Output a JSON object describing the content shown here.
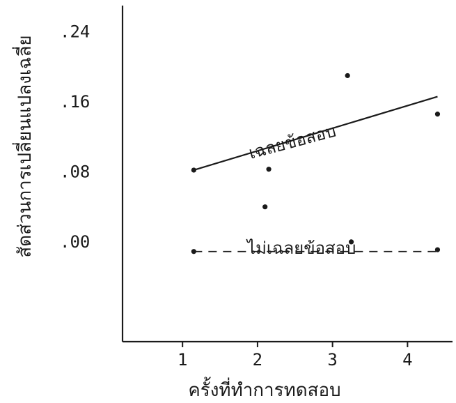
{
  "chart_data": {
    "type": "scatter",
    "title": "",
    "xlabel": "ครั้งที่ทำการทดสอบ",
    "ylabel": "สัดส่วนการเปลี่ยนแปลงเฉลี่ย",
    "xlim": [
      0.2,
      4.6
    ],
    "ylim": [
      -0.114,
      0.27
    ],
    "x_ticks": [
      1,
      2,
      3,
      4
    ],
    "x_tick_labels": [
      "1",
      "2",
      "3",
      "4"
    ],
    "y_ticks": [
      0.0,
      0.08,
      0.16,
      0.24
    ],
    "y_tick_labels": [
      ".00",
      ".08",
      ".16",
      ".24"
    ],
    "grid": false,
    "series": [
      {
        "name": "เฉลยข้อสอบ",
        "style": "solid",
        "points": [
          {
            "x": 1.15,
            "y": 0.082
          },
          {
            "x": 2.15,
            "y": 0.083
          },
          {
            "x": 3.2,
            "y": 0.19
          },
          {
            "x": 4.4,
            "y": 0.146
          }
        ],
        "trend": [
          {
            "x": 1.15,
            "y": 0.082
          },
          {
            "x": 4.4,
            "y": 0.166
          }
        ]
      },
      {
        "name": "ไม่เฉลยข้อสอบ",
        "style": "dashed",
        "points": [
          {
            "x": 1.15,
            "y": -0.011
          },
          {
            "x": 2.1,
            "y": 0.04
          },
          {
            "x": 3.25,
            "y": 0.0
          },
          {
            "x": 4.4,
            "y": -0.009
          }
        ],
        "trend": [
          {
            "x": 1.15,
            "y": -0.011
          },
          {
            "x": 4.4,
            "y": -0.011
          }
        ]
      }
    ]
  }
}
